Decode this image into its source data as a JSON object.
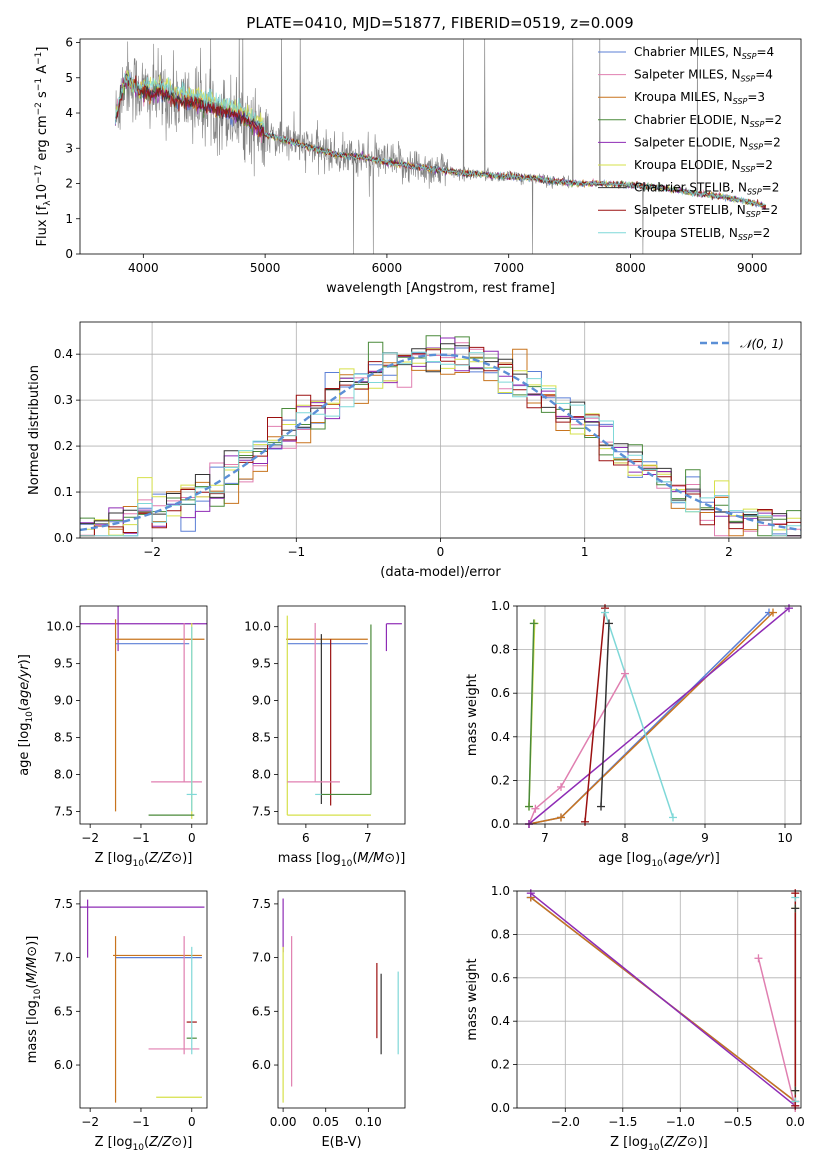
{
  "chart_data": [
    {
      "id": "spectrum",
      "type": "line",
      "title": "PLATE=0410, MJD=51877, FIBERID=0519, z=0.009",
      "xlabel": "wavelength [Angstrom, rest frame]",
      "ylabel": "Flux [f_λ 10^-17 erg cm^-2 s^-1 A^-1]",
      "ylabel_parts": {
        "pre": "Flux [f",
        "sub": "λ",
        "mid": "10",
        "sup1": "−17",
        "mid2": " erg cm",
        "sup2": "−2",
        "mid3": " s",
        "sup3": "−1",
        "mid4": " A",
        "sup4": "−1",
        "post": "]"
      },
      "xlim": [
        3480,
        9400
      ],
      "ylim": [
        0,
        6.1
      ],
      "xticks": [
        4000,
        5000,
        6000,
        7000,
        8000,
        9000
      ],
      "yticks": [
        0,
        1,
        2,
        3,
        4,
        5,
        6
      ],
      "legend": "top-right",
      "series": [
        {
          "name": "Chabrier MILES, N_SSP=4",
          "label": "Chabrier MILES, N",
          "sub": "SSP",
          "val": "=4",
          "color": "#5b7fd6"
        },
        {
          "name": "Salpeter MILES, N_SSP=4",
          "label": "Salpeter MILES, N",
          "sub": "SSP",
          "val": "=4",
          "color": "#e07fb0"
        },
        {
          "name": "Kroupa MILES, N_SSP=3",
          "label": "Kroupa MILES, N",
          "sub": "SSP",
          "val": "=3",
          "color": "#c8741e"
        },
        {
          "name": "Chabrier ELODIE, N_SSP=2",
          "label": "Chabrier ELODIE, N",
          "sub": "SSP",
          "val": "=2",
          "color": "#4a8a3a"
        },
        {
          "name": "Salpeter ELODIE, N_SSP=2",
          "label": "Salpeter ELODIE, N",
          "sub": "SSP",
          "val": "=2",
          "color": "#8e2bb5"
        },
        {
          "name": "Kroupa ELODIE, N_SSP=2",
          "label": "Kroupa ELODIE, N",
          "sub": "SSP",
          "val": "=2",
          "color": "#d6e04a"
        },
        {
          "name": "Chabrier STELIB, N_SSP=2",
          "label": "Chabrier STELIB, N",
          "sub": "SSP",
          "val": "=2",
          "color": "#333333"
        },
        {
          "name": "Salpeter STELIB, N_SSP=2",
          "label": "Salpeter STELIB, N",
          "sub": "SSP",
          "val": "=2",
          "color": "#9b1010"
        },
        {
          "name": "Kroupa STELIB, N_SSP=2",
          "label": "Kroupa STELIB, N",
          "sub": "SSP",
          "val": "=2",
          "color": "#7fd8d8"
        }
      ],
      "data_color": "#808080",
      "continuum": [
        [
          3770,
          3.8
        ],
        [
          3850,
          5.0
        ],
        [
          3950,
          4.7
        ],
        [
          4050,
          4.5
        ],
        [
          4150,
          4.6
        ],
        [
          4250,
          4.4
        ],
        [
          4400,
          4.3
        ],
        [
          4600,
          4.1
        ],
        [
          4800,
          3.9
        ],
        [
          5000,
          3.4
        ],
        [
          5200,
          3.2
        ],
        [
          5400,
          3.0
        ],
        [
          5600,
          2.8
        ],
        [
          5800,
          2.75
        ],
        [
          6000,
          2.6
        ],
        [
          6200,
          2.5
        ],
        [
          6400,
          2.4
        ],
        [
          6600,
          2.3
        ],
        [
          6800,
          2.25
        ],
        [
          7000,
          2.2
        ],
        [
          7200,
          2.15
        ],
        [
          7400,
          2.05
        ],
        [
          7600,
          2.0
        ],
        [
          7800,
          2.0
        ],
        [
          8000,
          1.95
        ],
        [
          8200,
          1.9
        ],
        [
          8400,
          1.8
        ],
        [
          8600,
          1.7
        ],
        [
          8800,
          1.6
        ],
        [
          9000,
          1.45
        ],
        [
          9110,
          1.35
        ]
      ]
    },
    {
      "id": "residuals",
      "type": "histogram",
      "xlabel": "(data-model)/error",
      "ylabel": "Normed distribution",
      "xlim": [
        -2.5,
        2.5
      ],
      "ylim": [
        0,
        0.47
      ],
      "xticks": [
        -2,
        -1,
        0,
        1,
        2
      ],
      "yticks": [
        0.0,
        0.1,
        0.2,
        0.3,
        0.4
      ],
      "legend": "top-right",
      "legend_label": "N(0,1)",
      "gauss_color": "#5b8fd6",
      "bin_width": 0.1
    },
    {
      "id": "age_vs_Z",
      "type": "errorbar",
      "xlabel": "Z [log10(Z/Z⊙)]",
      "ylabel": "age  [log10(age/yr)]",
      "xlim": [
        -2.2,
        0.3
      ],
      "ylim": [
        7.33,
        10.28
      ],
      "xticks": [
        -2,
        -1,
        0
      ],
      "yticks": [
        7.5,
        8.0,
        8.5,
        9.0,
        9.5,
        10.0
      ],
      "points": [
        {
          "x": -1.45,
          "y": 10.04,
          "xerr": [
            0.95,
            1.75
          ],
          "yerr": [
            0.37,
            0.37
          ],
          "color": "#8e2bb5"
        },
        {
          "x": -0.3,
          "y": 9.83,
          "xerr": [
            1.2,
            0.55
          ],
          "yerr": [
            0.0,
            0.0
          ],
          "color": "#c8741e"
        },
        {
          "x": -0.4,
          "y": 9.77,
          "xerr": [
            1.1,
            0.35
          ],
          "yerr": [
            0.0,
            0.0
          ],
          "color": "#5b7fd6"
        },
        {
          "x": -1.5,
          "y": 9.8,
          "xerr": [
            0.0,
            0.0
          ],
          "yerr": [
            2.3,
            0.3
          ],
          "color": "#c8741e"
        },
        {
          "x": -0.15,
          "y": 7.9,
          "xerr": [
            0.65,
            0.35
          ],
          "yerr": [
            0.0,
            2.15
          ],
          "color": "#e07fb0"
        },
        {
          "x": 0.0,
          "y": 9.6,
          "xerr": [
            0.0,
            0.0
          ],
          "yerr": [
            2.2,
            0.45
          ],
          "color": "#d6e04a"
        },
        {
          "x": -0.45,
          "y": 7.45,
          "xerr": [
            0.4,
            0.5
          ],
          "yerr": [
            0.0,
            0.0
          ],
          "color": "#4a8a3a"
        },
        {
          "x": 0.0,
          "y": 7.73,
          "xerr": [
            0.1,
            0.1
          ],
          "yerr": [
            0.0,
            0.0
          ],
          "color": "#7fd8d8"
        },
        {
          "x": 0.0,
          "y": 9.5,
          "xerr": [
            0.0,
            0.0
          ],
          "yerr": [
            2.0,
            0.5
          ],
          "color": "#7fd8d8"
        }
      ]
    },
    {
      "id": "age_vs_mass",
      "type": "errorbar",
      "xlabel": "mass [log10(M/M⊙)]",
      "xlim": [
        5.55,
        7.6
      ],
      "ylim": [
        7.33,
        10.28
      ],
      "xticks": [
        6,
        7
      ],
      "yticks": [
        7.5,
        8.0,
        8.5,
        9.0,
        9.5,
        10.0
      ],
      "points": [
        {
          "x": 7.3,
          "y": 10.04,
          "xerr": [
            0.0,
            0.25
          ],
          "yerr": [
            0.37,
            0.0
          ],
          "color": "#8e2bb5"
        },
        {
          "x": 6.4,
          "y": 9.83,
          "xerr": [
            0.72,
            0.6
          ],
          "yerr": [
            0.0,
            0.0
          ],
          "color": "#c8741e"
        },
        {
          "x": 6.5,
          "y": 9.77,
          "xerr": [
            0.8,
            0.5
          ],
          "yerr": [
            0.0,
            0.0
          ],
          "color": "#5b7fd6"
        },
        {
          "x": 5.7,
          "y": 8.8,
          "xerr": [
            0.0,
            0.0
          ],
          "yerr": [
            1.35,
            1.35
          ],
          "color": "#d6e04a"
        },
        {
          "x": 6.25,
          "y": 9.9,
          "xerr": [
            0.0,
            0.0
          ],
          "yerr": [
            2.3,
            0.0
          ],
          "color": "#333333"
        },
        {
          "x": 6.4,
          "y": 9.83,
          "xerr": [
            0.0,
            0.0
          ],
          "yerr": [
            2.25,
            0.0
          ],
          "color": "#9b1010"
        },
        {
          "x": 6.15,
          "y": 7.9,
          "xerr": [
            0.45,
            0.4
          ],
          "yerr": [
            0.0,
            2.15
          ],
          "color": "#e07fb0"
        },
        {
          "x": 6.2,
          "y": 7.73,
          "xerr": [
            0.05,
            0.05
          ],
          "yerr": [
            0.0,
            0.0
          ],
          "color": "#7fd8d8"
        },
        {
          "x": 7.05,
          "y": 7.73,
          "xerr": [
            0.8,
            0.0
          ],
          "yerr": [
            0.0,
            2.3
          ],
          "color": "#4a8a3a"
        },
        {
          "x": 6.0,
          "y": 7.45,
          "xerr": [
            0.3,
            1.05
          ],
          "yerr": [
            0.0,
            0.0
          ],
          "color": "#d6e04a"
        }
      ]
    },
    {
      "id": "massweight_vs_age",
      "type": "line",
      "xlabel": "age  [log10(age/yr)]",
      "ylabel": "mass weight",
      "xlim": [
        6.65,
        10.2
      ],
      "ylim": [
        0.0,
        1.0
      ],
      "xticks": [
        7,
        8,
        9,
        10
      ],
      "yticks": [
        0.0,
        0.2,
        0.4,
        0.6,
        0.8,
        1.0
      ],
      "series": [
        {
          "color": "#5b7fd6",
          "x": [
            6.8,
            7.2,
            9.8
          ],
          "y": [
            0.0,
            0.03,
            0.97
          ]
        },
        {
          "color": "#c8741e",
          "x": [
            6.8,
            7.2,
            9.85
          ],
          "y": [
            0.0,
            0.03,
            0.97
          ]
        },
        {
          "color": "#e07fb0",
          "x": [
            6.8,
            6.88,
            7.2,
            8.0
          ],
          "y": [
            0.0,
            0.07,
            0.17,
            0.69
          ]
        },
        {
          "color": "#8e2bb5",
          "x": [
            6.8,
            10.05
          ],
          "y": [
            0.0,
            0.99
          ]
        },
        {
          "color": "#d6e04a",
          "x": [
            6.8,
            6.87
          ],
          "y": [
            0.08,
            0.92
          ]
        },
        {
          "color": "#4a8a3a",
          "x": [
            6.8,
            6.86
          ],
          "y": [
            0.08,
            0.92
          ]
        },
        {
          "color": "#333333",
          "x": [
            7.7,
            7.8
          ],
          "y": [
            0.08,
            0.92
          ]
        },
        {
          "color": "#9b1010",
          "x": [
            7.5,
            7.75
          ],
          "y": [
            0.01,
            0.99
          ]
        },
        {
          "color": "#7fd8d8",
          "x": [
            7.75,
            8.6
          ],
          "y": [
            0.97,
            0.03
          ]
        }
      ]
    },
    {
      "id": "mass_vs_Z",
      "type": "errorbar",
      "xlabel": "Z [log10(Z/Z⊙)]",
      "ylabel": "mass [log10(M/M⊙)]",
      "xlim": [
        -2.2,
        0.3
      ],
      "ylim": [
        5.6,
        7.62
      ],
      "xticks": [
        -2,
        -1,
        0
      ],
      "yticks": [
        6.0,
        6.5,
        7.0,
        7.5
      ],
      "points": [
        {
          "x": -0.9,
          "y": 7.47,
          "xerr": [
            1.4,
            1.15
          ],
          "yerr": [
            0.0,
            0.0
          ],
          "color": "#8e2bb5"
        },
        {
          "x": -2.05,
          "y": 7.47,
          "xerr": [
            0.0,
            0.0
          ],
          "yerr": [
            0.47,
            0.07
          ],
          "color": "#8e2bb5"
        },
        {
          "x": -0.6,
          "y": 7.02,
          "xerr": [
            0.95,
            0.8
          ],
          "yerr": [
            0.0,
            0.0
          ],
          "color": "#c8741e"
        },
        {
          "x": -0.5,
          "y": 7.0,
          "xerr": [
            1.0,
            0.7
          ],
          "yerr": [
            0.0,
            0.0
          ],
          "color": "#5b7fd6"
        },
        {
          "x": -1.5,
          "y": 6.5,
          "xerr": [
            0.0,
            0.0
          ],
          "yerr": [
            0.85,
            0.7
          ],
          "color": "#c8741e"
        },
        {
          "x": -0.5,
          "y": 6.15,
          "xerr": [
            0.35,
            0.65
          ],
          "yerr": [
            0.0,
            0.0
          ],
          "color": "#e07fb0"
        },
        {
          "x": -0.15,
          "y": 6.6,
          "xerr": [
            0.0,
            0.0
          ],
          "yerr": [
            0.5,
            0.6
          ],
          "color": "#e07fb0"
        },
        {
          "x": 0.0,
          "y": 6.4,
          "xerr": [
            0.1,
            0.1
          ],
          "yerr": [
            0.0,
            0.0
          ],
          "color": "#9b1010"
        },
        {
          "x": 0.0,
          "y": 6.25,
          "xerr": [
            0.1,
            0.1
          ],
          "yerr": [
            0.0,
            0.0
          ],
          "color": "#4a8a3a"
        },
        {
          "x": -0.2,
          "y": 5.7,
          "xerr": [
            0.5,
            0.4
          ],
          "yerr": [
            0.0,
            0.0
          ],
          "color": "#d6e04a"
        },
        {
          "x": 0.0,
          "y": 6.6,
          "xerr": [
            0.0,
            0.0
          ],
          "yerr": [
            0.5,
            0.5
          ],
          "color": "#7fd8d8"
        }
      ]
    },
    {
      "id": "mass_vs_EBV",
      "type": "errorbar",
      "xlabel": "E(B-V)",
      "xlim": [
        -0.006,
        0.143
      ],
      "ylim": [
        5.6,
        7.62
      ],
      "xticks": [
        0.0,
        0.05,
        0.1
      ],
      "xticklabels": [
        "0.00",
        "0.05",
        "0.10"
      ],
      "yticks": [
        6.0,
        6.5,
        7.0,
        7.5
      ],
      "points": [
        {
          "x": 0.0,
          "y": 7.25,
          "xerr": [
            0.0,
            0.0
          ],
          "yerr": [
            0.2,
            0.3
          ],
          "color": "#8e2bb5"
        },
        {
          "x": 0.0,
          "y": 6.4,
          "xerr": [
            0.0,
            0.0
          ],
          "yerr": [
            0.75,
            0.7
          ],
          "color": "#d6e04a"
        },
        {
          "x": 0.01,
          "y": 6.7,
          "xerr": [
            0.0,
            0.0
          ],
          "yerr": [
            0.9,
            0.5
          ],
          "color": "#e07fb0"
        },
        {
          "x": 0.11,
          "y": 6.6,
          "xerr": [
            0.0,
            0.0
          ],
          "yerr": [
            0.35,
            0.35
          ],
          "color": "#9b1010"
        },
        {
          "x": 0.115,
          "y": 6.45,
          "xerr": [
            0.0,
            0.0
          ],
          "yerr": [
            0.35,
            0.4
          ],
          "color": "#333333"
        },
        {
          "x": 0.135,
          "y": 6.5,
          "xerr": [
            0.0,
            0.0
          ],
          "yerr": [
            0.4,
            0.37
          ],
          "color": "#7fd8d8"
        }
      ]
    },
    {
      "id": "massweight_vs_Z",
      "type": "line",
      "xlabel": "Z [log10(Z/Z⊙)]",
      "ylabel": "mass weight",
      "xlim": [
        -2.42,
        0.05
      ],
      "ylim": [
        0.0,
        1.0
      ],
      "xticks": [
        -2.0,
        -1.5,
        -1.0,
        -0.5,
        0.0
      ],
      "xticklabels": [
        "−2.0",
        "−1.5",
        "−1.0",
        "−0.5",
        "0.0"
      ],
      "yticks": [
        0.0,
        0.2,
        0.4,
        0.6,
        0.8,
        1.0
      ],
      "series": [
        {
          "color": "#5b7fd6",
          "x": [
            -2.3,
            0.0
          ],
          "y": [
            0.97,
            0.03
          ]
        },
        {
          "color": "#c8741e",
          "x": [
            -2.3,
            0.0
          ],
          "y": [
            0.97,
            0.03
          ]
        },
        {
          "color": "#8e2bb5",
          "x": [
            -2.3,
            0.0
          ],
          "y": [
            0.99,
            0.01
          ]
        },
        {
          "color": "#e07fb0",
          "x": [
            -0.32,
            0.0
          ],
          "y": [
            0.69,
            0.0
          ]
        },
        {
          "color": "#7fd8d8",
          "x": [
            0.0,
            0.0
          ],
          "y": [
            0.03,
            0.97
          ]
        },
        {
          "color": "#d6e04a",
          "x": [
            0.0,
            0.0
          ],
          "y": [
            0.08,
            0.92
          ]
        },
        {
          "color": "#333333",
          "x": [
            0.0,
            0.0
          ],
          "y": [
            0.08,
            0.92
          ]
        },
        {
          "color": "#9b1010",
          "x": [
            0.0,
            0.0
          ],
          "y": [
            0.01,
            0.99
          ]
        }
      ]
    }
  ]
}
